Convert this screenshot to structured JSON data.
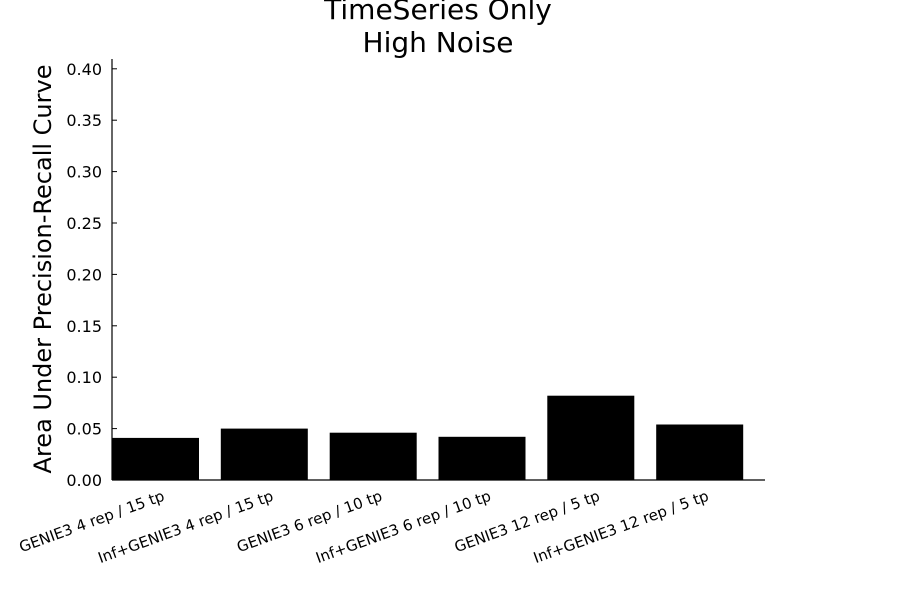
{
  "chart_data": {
    "type": "bar",
    "title": [
      "TimeSeries Only",
      "High Noise"
    ],
    "ylabel": "Area Under Precision-Recall Curve",
    "xlabel": "",
    "categories": [
      "GENIE3 4 rep / 15 tp",
      "Inf+GENIE3 4 rep / 15 tp",
      "GENIE3 6 rep / 10 tp",
      "Inf+GENIE3 6 rep / 10 tp",
      "GENIE3 12 rep / 5 tp",
      "Inf+GENIE3 12 rep / 5 tp"
    ],
    "values": [
      0.041,
      0.05,
      0.046,
      0.042,
      0.082,
      0.054
    ],
    "yticks": [
      "0.00",
      "0.05",
      "0.10",
      "0.15",
      "0.20",
      "0.25",
      "0.30",
      "0.35",
      "0.40"
    ],
    "ylim": [
      0,
      0.41
    ],
    "bar_color": "#000000",
    "grid": false,
    "legend": "none"
  }
}
